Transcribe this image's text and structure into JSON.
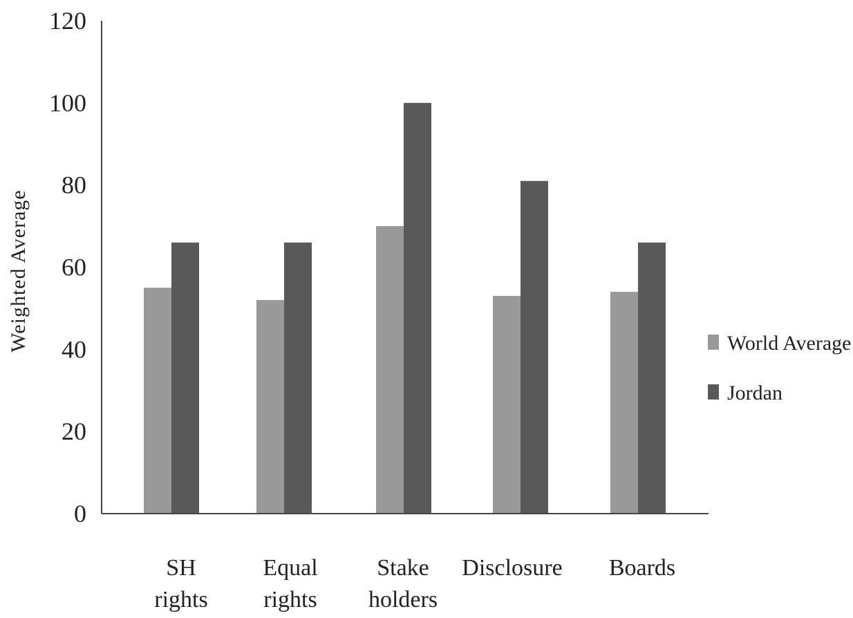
{
  "chart_data": {
    "type": "bar",
    "categories": [
      [
        "SH",
        "rights"
      ],
      [
        "Equal",
        "rights"
      ],
      [
        "Stake",
        "holders"
      ],
      [
        "Disclosure"
      ],
      [
        "Boards"
      ]
    ],
    "series": [
      {
        "name": "World Average",
        "color": "#999999",
        "values": [
          55,
          52,
          70,
          53,
          54
        ]
      },
      {
        "name": "Jordan",
        "color": "#595959",
        "values": [
          66,
          66,
          100,
          81,
          66
        ]
      }
    ],
    "xlabel": "",
    "ylabel": "Weighted Average",
    "ylim": [
      0,
      120
    ],
    "yticks": [
      0,
      20,
      40,
      60,
      80,
      100,
      120
    ],
    "grid": false,
    "legend_position": "right"
  }
}
